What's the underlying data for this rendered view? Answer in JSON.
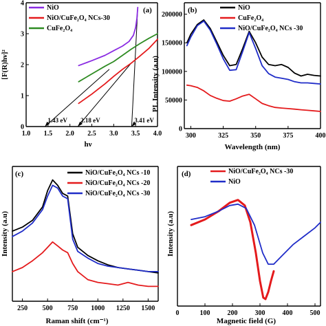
{
  "chart_data": [
    {
      "panel": "(a)",
      "type": "line",
      "xlabel": "hν",
      "ylabel": "[F(R)hν]²",
      "xlim": [
        1.0,
        4.0
      ],
      "ylim": [
        0,
        4
      ],
      "x_ticks": [
        "1.0",
        "1.5",
        "2.0",
        "2.5",
        "3.0",
        "3.5",
        "4.0"
      ],
      "y_ticks": [
        "0",
        "1",
        "2",
        "3",
        "4"
      ],
      "legend": [
        "NiO",
        "NiO/CuFe₂O₄ NCs-30",
        "CuFe₂O₄"
      ],
      "legend_position": "top-left",
      "annotations": [
        {
          "text": "1.43 eV",
          "x": 1.43
        },
        {
          "text": "2.18 eV",
          "x": 2.18
        },
        {
          "text": "3.41 eV",
          "x": 3.41
        }
      ],
      "series": [
        {
          "name": "NiO",
          "color": "#8a2be2",
          "x": [
            2.2,
            2.5,
            2.8,
            3.0,
            3.2,
            3.35,
            3.45,
            3.5,
            3.53,
            3.55
          ],
          "y": [
            1.97,
            2.13,
            2.3,
            2.45,
            2.6,
            2.75,
            2.95,
            3.2,
            3.5,
            3.85
          ]
        },
        {
          "name": "NiO/CuFe₂O₄ NCs-30",
          "color": "#e41a1c",
          "x": [
            2.2,
            2.5,
            2.8,
            3.0,
            3.2,
            3.4,
            3.6,
            3.8,
            4.0
          ],
          "y": [
            0.75,
            1.05,
            1.38,
            1.62,
            1.85,
            2.05,
            2.28,
            2.52,
            2.82
          ]
        },
        {
          "name": "CuFe₂O₄",
          "color": "#2e8b22",
          "x": [
            2.2,
            2.5,
            2.8,
            3.0,
            3.2,
            3.4,
            3.6,
            3.8,
            4.0
          ],
          "y": [
            1.45,
            1.7,
            1.95,
            2.1,
            2.3,
            2.5,
            2.68,
            2.85,
            3.0
          ]
        }
      ],
      "tangent_lines": [
        {
          "x": [
            1.43,
            2.9
          ],
          "y": [
            0,
            1.85
          ]
        },
        {
          "x": [
            2.18,
            3.4
          ],
          "y": [
            0,
            2.05
          ]
        },
        {
          "x": [
            3.41,
            3.55
          ],
          "y": [
            0,
            3.85
          ]
        }
      ]
    },
    {
      "panel": "(b)",
      "type": "line",
      "xlabel": "Wavelength (nm)",
      "ylabel": "PL Intensity (a.u)",
      "xlim": [
        295,
        400
      ],
      "ylim": [
        0,
        220000
      ],
      "x_ticks": [
        "300",
        "325",
        "350",
        "375",
        "400"
      ],
      "y_ticks": [
        "0",
        "50000",
        "100000",
        "150000",
        "200000"
      ],
      "legend": [
        "NiO",
        "CuFe₂O₄",
        "NiO/CuFe₂O₄ NCs -30"
      ],
      "legend_position": "top-right",
      "series": [
        {
          "name": "NiO",
          "color": "#000000",
          "x": [
            297,
            300,
            305,
            310,
            315,
            320,
            325,
            330,
            335,
            340,
            345,
            350,
            355,
            360,
            365,
            370,
            375,
            380,
            385,
            390,
            395,
            400
          ],
          "y": [
            150000,
            165000,
            182000,
            190000,
            175000,
            152000,
            128000,
            110000,
            112000,
            140000,
            170000,
            150000,
            125000,
            112000,
            110000,
            112000,
            107000,
            97000,
            92000,
            95000,
            93000,
            92000
          ]
        },
        {
          "name": "CuFe₂O₄",
          "color": "#e41a1c",
          "x": [
            297,
            300,
            305,
            310,
            315,
            320,
            325,
            330,
            335,
            340,
            345,
            350,
            355,
            360,
            365,
            370,
            375,
            380,
            385,
            390,
            395,
            400
          ],
          "y": [
            76000,
            75000,
            72000,
            66000,
            58000,
            53000,
            49000,
            48000,
            52000,
            57000,
            60000,
            52000,
            44000,
            40000,
            37000,
            36000,
            35000,
            34000,
            33000,
            32000,
            31000,
            30000
          ]
        },
        {
          "name": "NiO/CuFe₂O₄ NCs -30",
          "color": "#1f2cc8",
          "x": [
            297,
            300,
            305,
            310,
            315,
            320,
            325,
            330,
            335,
            340,
            345,
            350,
            355,
            360,
            365,
            370,
            375,
            380,
            385,
            390,
            395,
            400
          ],
          "y": [
            145000,
            160000,
            180000,
            188000,
            172000,
            148000,
            122000,
            102000,
            103000,
            135000,
            168000,
            140000,
            110000,
            96000,
            90000,
            88000,
            86000,
            82000,
            80000,
            80000,
            79000,
            78000
          ]
        }
      ]
    },
    {
      "panel": "(c)",
      "type": "line",
      "xlabel": "Raman shift (cm⁻¹)",
      "ylabel": "Intensity (a.u)",
      "xlim": [
        150,
        1600
      ],
      "x_ticks": [
        "250",
        "500",
        "750",
        "1000",
        "1250",
        "1500"
      ],
      "legend": [
        "NiO/CuFe₂O₄ NCs -10",
        "NiO/CuFe₂O₄ NCs -20",
        "NiO/CuFe₂O₄ NCs -30"
      ],
      "legend_position": "top-right",
      "series": [
        {
          "name": "NiO/CuFe₂O₄ NCs -10",
          "color": "#000000",
          "x": [
            150,
            250,
            350,
            450,
            500,
            550,
            600,
            650,
            700,
            750,
            800,
            900,
            1000,
            1100,
            1200,
            1300,
            1400,
            1500,
            1600
          ],
          "y": [
            0.52,
            0.55,
            0.6,
            0.7,
            0.82,
            0.9,
            0.86,
            0.8,
            0.78,
            0.5,
            0.4,
            0.34,
            0.3,
            0.27,
            0.25,
            0.24,
            0.23,
            0.22,
            0.21
          ]
        },
        {
          "name": "NiO/CuFe₂O₄ NCs -20",
          "color": "#e41a1c",
          "x": [
            150,
            250,
            350,
            450,
            500,
            550,
            600,
            650,
            700,
            750,
            800,
            900,
            1000,
            1100,
            1200,
            1300,
            1400,
            1500,
            1600
          ],
          "y": [
            0.22,
            0.25,
            0.3,
            0.36,
            0.4,
            0.44,
            0.41,
            0.38,
            0.36,
            0.28,
            0.22,
            0.16,
            0.14,
            0.13,
            0.12,
            0.14,
            0.12,
            0.11,
            0.11
          ]
        },
        {
          "name": "NiO/CuFe₂O₄ NCs -30",
          "color": "#1f2cc8",
          "x": [
            150,
            250,
            350,
            450,
            500,
            550,
            600,
            650,
            700,
            750,
            800,
            900,
            1000,
            1100,
            1200,
            1300,
            1400,
            1500,
            1600
          ],
          "y": [
            0.48,
            0.52,
            0.58,
            0.68,
            0.78,
            0.86,
            0.84,
            0.78,
            0.76,
            0.46,
            0.37,
            0.32,
            0.28,
            0.26,
            0.25,
            0.24,
            0.23,
            0.22,
            0.22
          ]
        }
      ]
    },
    {
      "panel": "(d)",
      "type": "line",
      "xlabel": "Magnetic field (G)",
      "ylabel": "Intensity (a.u)",
      "xlim": [
        0,
        520
      ],
      "x_ticks": [
        "0",
        "100",
        "200",
        "300",
        "400",
        "500"
      ],
      "legend": [
        "NiO/CuFe₂O₄ NCs -30",
        "NiO"
      ],
      "legend_position": "top-right",
      "series": [
        {
          "name": "NiO/CuFe₂O₄ NCs -30",
          "color": "#e41a1c",
          "x": [
            50,
            100,
            150,
            190,
            220,
            245,
            265,
            285,
            300,
            312,
            320,
            330,
            340,
            350
          ],
          "y": [
            0.58,
            0.62,
            0.68,
            0.74,
            0.76,
            0.72,
            0.6,
            0.38,
            0.18,
            0.06,
            0.05,
            0.1,
            0.18,
            0.25
          ]
        },
        {
          "name": "NiO",
          "color": "#1f2cc8",
          "x": [
            50,
            100,
            150,
            190,
            220,
            250,
            280,
            310,
            330,
            350,
            380,
            420,
            460,
            500,
            520
          ],
          "y": [
            0.62,
            0.64,
            0.68,
            0.72,
            0.73,
            0.7,
            0.58,
            0.38,
            0.3,
            0.3,
            0.36,
            0.44,
            0.5,
            0.56,
            0.6
          ]
        }
      ]
    }
  ]
}
